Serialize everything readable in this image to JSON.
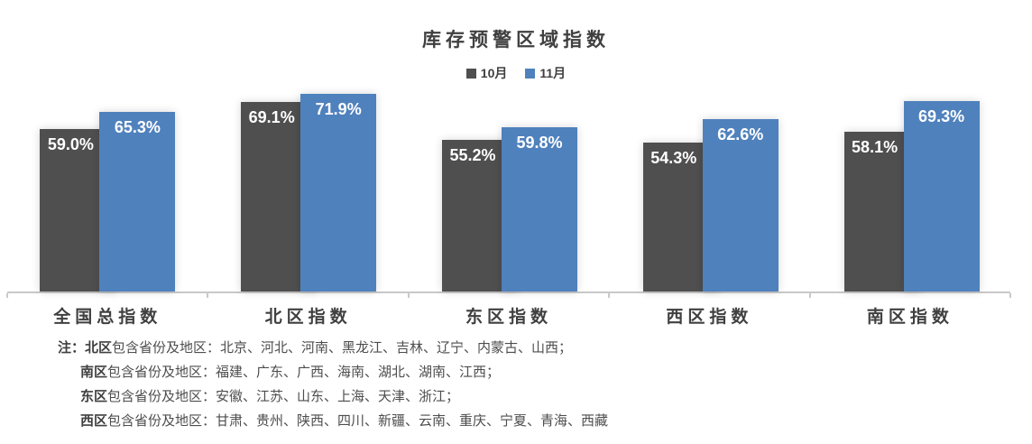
{
  "chart_data": {
    "type": "bar",
    "title": "库存预警区域指数",
    "categories": [
      "全国总指数",
      "北区指数",
      "东区指数",
      "西区指数",
      "南区指数"
    ],
    "series": [
      {
        "name": "10月",
        "color": "#4F4F4F",
        "values": [
          59.0,
          69.1,
          55.2,
          54.3,
          58.1
        ],
        "labels": [
          "59.0%",
          "69.1%",
          "55.2%",
          "54.3%",
          "58.1%"
        ]
      },
      {
        "name": "11月",
        "color": "#4F81BD",
        "values": [
          65.3,
          71.9,
          59.8,
          62.6,
          69.3
        ],
        "labels": [
          "65.3%",
          "71.9%",
          "59.8%",
          "62.6%",
          "69.3%"
        ]
      }
    ],
    "unit": "%",
    "ylim": [
      0,
      74
    ],
    "grid": false,
    "legend_position": "top",
    "axis_color": "#C9C9C9",
    "label_text_color": "#ffffff"
  },
  "notes": {
    "label": "注：",
    "lines": [
      {
        "region": "北区",
        "rest": "包含省份及地区：北京、河北、河南、黑龙江、吉林、辽宁、内蒙古、山西；"
      },
      {
        "region": "南区",
        "rest": "包含省份及地区：福建、广东、广西、海南、湖北、湖南、江西；"
      },
      {
        "region": "东区",
        "rest": "包含省份及地区：安徽、江苏、山东、上海、天津、浙江；"
      },
      {
        "region": "西区",
        "rest": "包含省份及地区：甘肃、贵州、陕西、四川、新疆、云南、重庆、宁夏、青海、西藏"
      }
    ]
  }
}
